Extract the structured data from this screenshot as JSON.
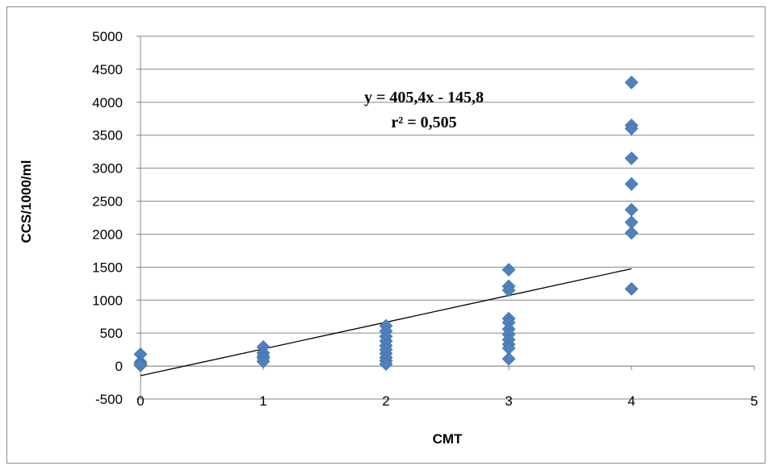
{
  "chart_data": {
    "type": "scatter",
    "title": "",
    "xlabel": "CMT",
    "ylabel": "CCS/1000/ml",
    "xlim": [
      0,
      5
    ],
    "ylim": [
      -500,
      5000
    ],
    "x_ticks": [
      0,
      1,
      2,
      3,
      4,
      5
    ],
    "y_ticks": [
      -500,
      0,
      500,
      1000,
      1500,
      2000,
      2500,
      3000,
      3500,
      4000,
      4500,
      5000
    ],
    "grid": "horizontal",
    "legend": "none",
    "marker": "diamond",
    "marker_color": "#4F81BD",
    "points": [
      {
        "x": 0,
        "y": 180
      },
      {
        "x": 0,
        "y": 60
      },
      {
        "x": 0,
        "y": 30
      },
      {
        "x": 0,
        "y": 10
      },
      {
        "x": 1,
        "y": 290
      },
      {
        "x": 1,
        "y": 200
      },
      {
        "x": 1,
        "y": 150
      },
      {
        "x": 1,
        "y": 120
      },
      {
        "x": 1,
        "y": 70
      },
      {
        "x": 2,
        "y": 610
      },
      {
        "x": 2,
        "y": 530
      },
      {
        "x": 2,
        "y": 450
      },
      {
        "x": 2,
        "y": 380
      },
      {
        "x": 2,
        "y": 310
      },
      {
        "x": 2,
        "y": 250
      },
      {
        "x": 2,
        "y": 190
      },
      {
        "x": 2,
        "y": 130
      },
      {
        "x": 2,
        "y": 80
      },
      {
        "x": 2,
        "y": 30
      },
      {
        "x": 3,
        "y": 1460
      },
      {
        "x": 3,
        "y": 1210
      },
      {
        "x": 3,
        "y": 1150
      },
      {
        "x": 3,
        "y": 720
      },
      {
        "x": 3,
        "y": 660
      },
      {
        "x": 3,
        "y": 560
      },
      {
        "x": 3,
        "y": 480
      },
      {
        "x": 3,
        "y": 400
      },
      {
        "x": 3,
        "y": 330
      },
      {
        "x": 3,
        "y": 270
      },
      {
        "x": 3,
        "y": 110
      },
      {
        "x": 4,
        "y": 4300
      },
      {
        "x": 4,
        "y": 3650
      },
      {
        "x": 4,
        "y": 3600
      },
      {
        "x": 4,
        "y": 3150
      },
      {
        "x": 4,
        "y": 2760
      },
      {
        "x": 4,
        "y": 2370
      },
      {
        "x": 4,
        "y": 2180
      },
      {
        "x": 4,
        "y": 2020
      },
      {
        "x": 4,
        "y": 1170
      }
    ],
    "trendline": {
      "slope": 405.4,
      "intercept": -145.8,
      "x_range": [
        0,
        4
      ],
      "color": "#000000",
      "equation": "y = 405,4x - 145,8",
      "r_squared": "r² = 0,505"
    }
  }
}
